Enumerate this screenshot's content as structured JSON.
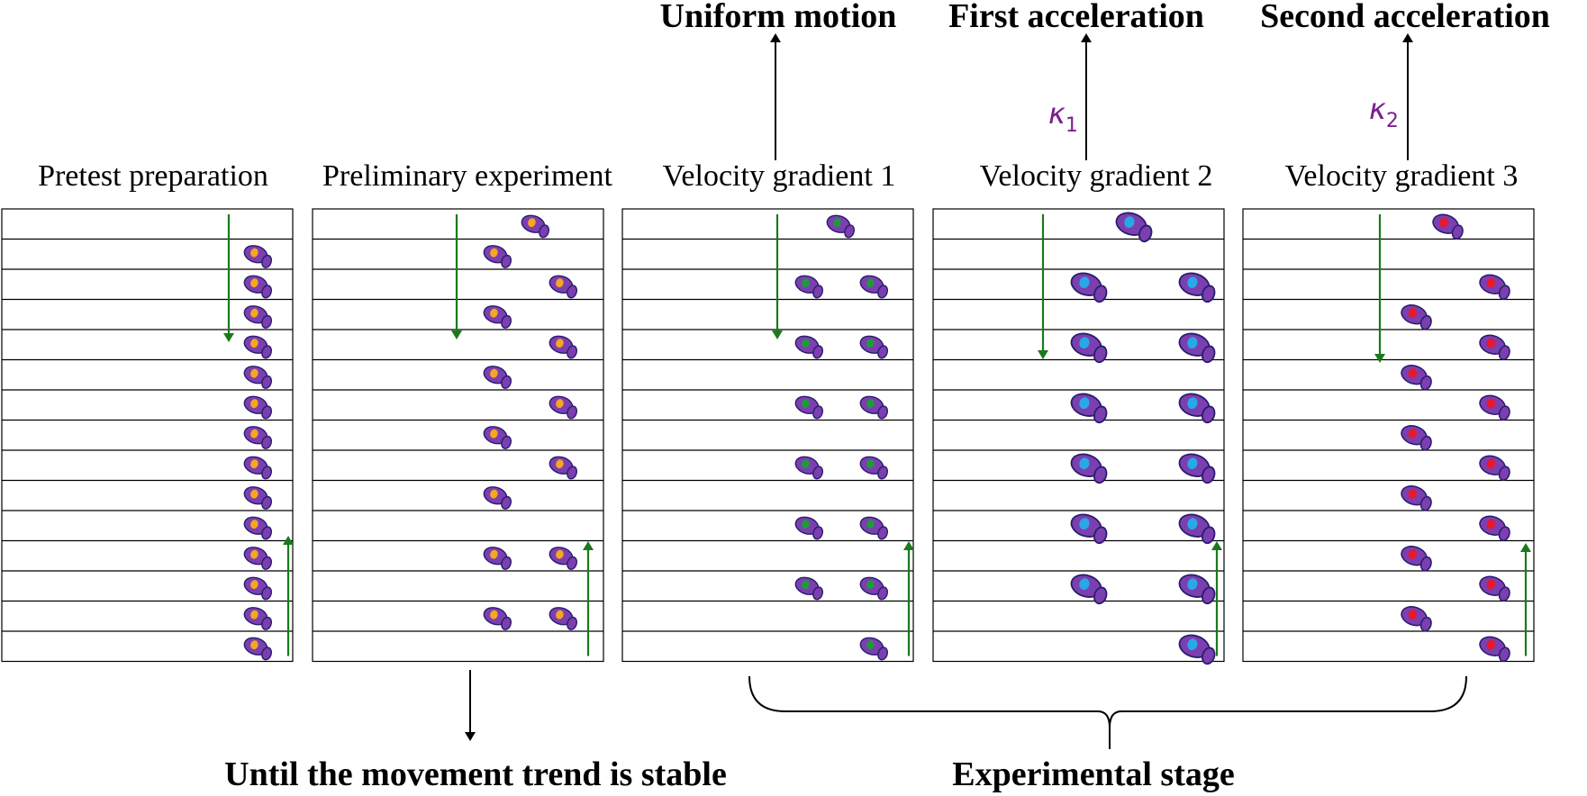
{
  "panels": [
    {
      "title": "Pretest preparation",
      "dot_color": "#f5a623"
    },
    {
      "title": "Preliminary experiment",
      "dot_color": "#f5a623"
    },
    {
      "title": "Velocity gradient 1",
      "dot_color": "#1f9a3a"
    },
    {
      "title": "Velocity gradient 2",
      "dot_color": "#29a8e8"
    },
    {
      "title": "Velocity gradient 3",
      "dot_color": "#e8192c"
    }
  ],
  "outcomes": {
    "uniform": "Uniform motion",
    "first": "First acceleration",
    "second": "Second acceleration"
  },
  "kappas": {
    "k1": {
      "symbol": "κ",
      "subscript": "1"
    },
    "k2": {
      "symbol": "κ",
      "subscript": "2"
    }
  },
  "bottom_labels": {
    "left": "Until the movement trend is stable",
    "right": "Experimental stage"
  },
  "colors": {
    "fish_body": "#7b3fb0",
    "fish_outline": "#2a1d6e",
    "flow_arrow": "#1a7a1a",
    "kappa": "#7a1f8c"
  }
}
